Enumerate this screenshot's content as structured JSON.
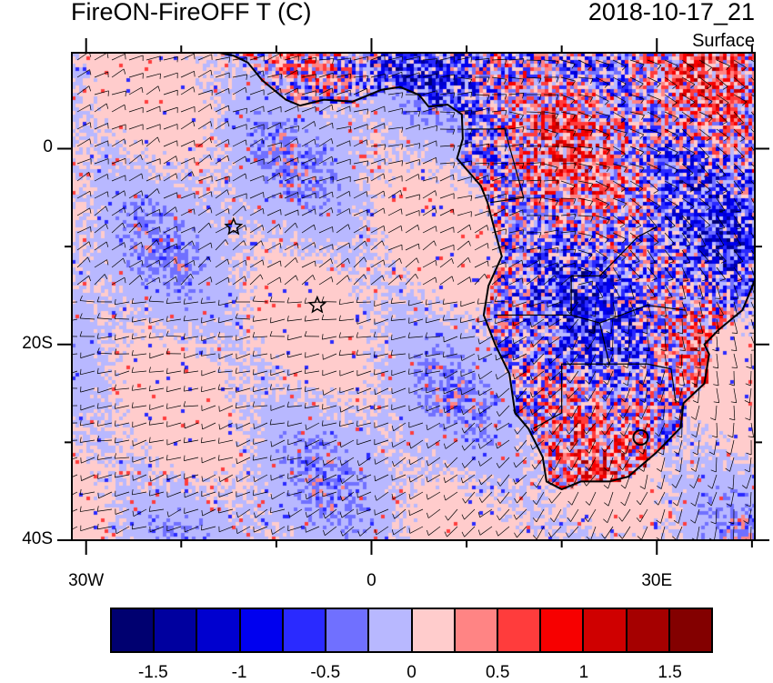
{
  "title": "FireON-FireOFF T (C)",
  "time": "2018-10-17_21",
  "level": "Surface",
  "map": {
    "lon_range": [
      -31.5,
      40.3
    ],
    "lat_range": [
      -40,
      9.8
    ],
    "lon_ticks": [
      {
        "value": -30,
        "label": "30W"
      },
      {
        "value": 0,
        "label": "0"
      },
      {
        "value": 30,
        "label": "30E"
      }
    ],
    "lat_ticks": [
      {
        "value": 0,
        "label": "0"
      },
      {
        "value": -20,
        "label": "20S"
      },
      {
        "value": -40,
        "label": "40S"
      }
    ],
    "markers": [
      {
        "type": "star",
        "lon": -14.5,
        "lat": -8
      },
      {
        "type": "star",
        "lon": -5.7,
        "lat": -16
      }
    ],
    "field_colors": {
      "ocean_warm": "#ffcccc",
      "ocean_cool": "#b8b8ff"
    }
  },
  "colorbar": {
    "colors": [
      "#000070",
      "#00009f",
      "#0000cf",
      "#0000ef",
      "#2a2aff",
      "#7070ff",
      "#b8b8ff",
      "#ffcccc",
      "#ff8484",
      "#ff3c3c",
      "#f70000",
      "#cf0000",
      "#a50000",
      "#830000"
    ],
    "labels": [
      "-1.5",
      "-1",
      "-0.5",
      "0",
      "0.5",
      "1",
      "1.5"
    ]
  }
}
